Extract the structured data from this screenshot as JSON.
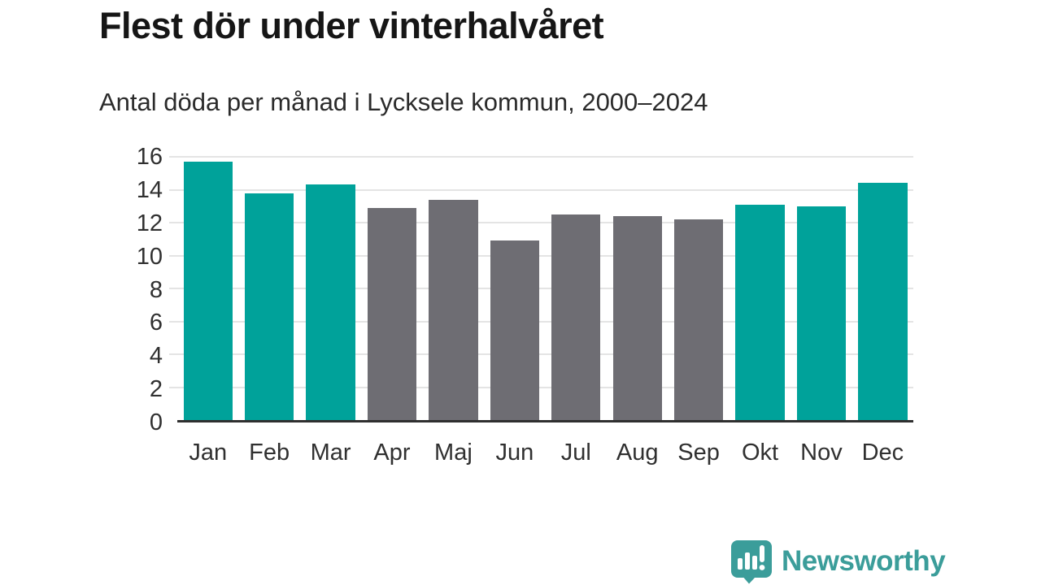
{
  "header": {
    "title": "Flest dör under vinterhalvåret",
    "subtitle": "Antal döda per månad i Lycksele kommun, 2000–2024"
  },
  "chart_data": {
    "type": "bar",
    "title": "Flest dör under vinterhalvåret",
    "subtitle": "Antal döda per månad i Lycksele kommun, 2000–2024",
    "categories": [
      "Jan",
      "Feb",
      "Mar",
      "Apr",
      "Maj",
      "Jun",
      "Jul",
      "Aug",
      "Sep",
      "Okt",
      "Nov",
      "Dec"
    ],
    "values": [
      15.7,
      13.8,
      14.3,
      12.9,
      13.4,
      10.9,
      12.5,
      12.4,
      12.2,
      13.1,
      13.0,
      14.4
    ],
    "bar_colors": [
      "#00a29a",
      "#00a29a",
      "#00a29a",
      "#6e6d73",
      "#6e6d73",
      "#6e6d73",
      "#6e6d73",
      "#6e6d73",
      "#6e6d73",
      "#00a29a",
      "#00a29a",
      "#00a29a"
    ],
    "xlabel": "",
    "ylabel": "",
    "ylim": [
      0,
      16
    ],
    "yticks": [
      0,
      2,
      4,
      6,
      8,
      10,
      12,
      14,
      16
    ],
    "grid": true,
    "legend": false,
    "highlight_color": "#00a29a",
    "base_color": "#6e6d73"
  },
  "footer": {
    "brand": "Newsworthy",
    "logo_icon": "newsworthy-speech-bubble-chart-icon"
  },
  "colors": {
    "teal": "#00a29a",
    "gray": "#6e6d73",
    "brand": "#3b9d9a",
    "gridline": "#e4e4e4",
    "axis_line": "#2f2f2f",
    "tick_text": "#303030",
    "title_text": "#161616",
    "background": "#ffffff"
  }
}
